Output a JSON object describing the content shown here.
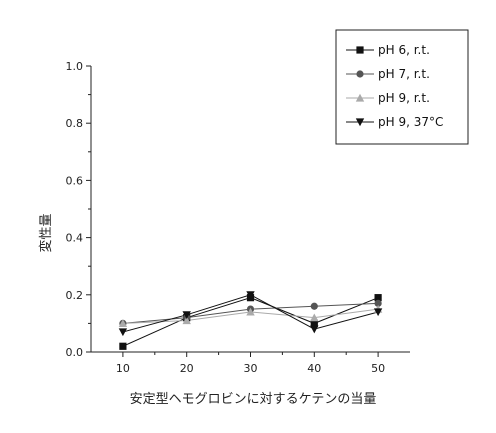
{
  "chart_data": {
    "type": "line",
    "title": "",
    "xlabel": "安定型ヘモグロビンに対するケテンの当量",
    "ylabel": "変性量",
    "x": [
      10,
      20,
      30,
      40,
      50
    ],
    "xlim": [
      5,
      55
    ],
    "ylim": [
      0.0,
      1.0
    ],
    "xticks": [
      "10",
      "20",
      "30",
      "40",
      "50"
    ],
    "yticks": [
      "0.0",
      "0.2",
      "0.4",
      "0.6",
      "0.8",
      "1.0"
    ],
    "grid": false,
    "legend_position": "top-right",
    "series": [
      {
        "name": "pH 6, r.t.",
        "marker": "square",
        "color": "#111111",
        "values": [
          0.02,
          0.12,
          0.19,
          0.1,
          0.19
        ]
      },
      {
        "name": "pH 7, r.t.",
        "marker": "circle",
        "color": "#555555",
        "values": [
          0.1,
          0.12,
          0.15,
          0.16,
          0.17
        ]
      },
      {
        "name": "pH 9, r.t.",
        "marker": "triangle-up",
        "color": "#aaaaaa",
        "values": [
          0.1,
          0.11,
          0.14,
          0.12,
          0.15
        ]
      },
      {
        "name": "pH 9, 37°C",
        "marker": "triangle-down",
        "color": "#111111",
        "values": [
          0.07,
          0.13,
          0.2,
          0.08,
          0.14
        ]
      }
    ]
  }
}
